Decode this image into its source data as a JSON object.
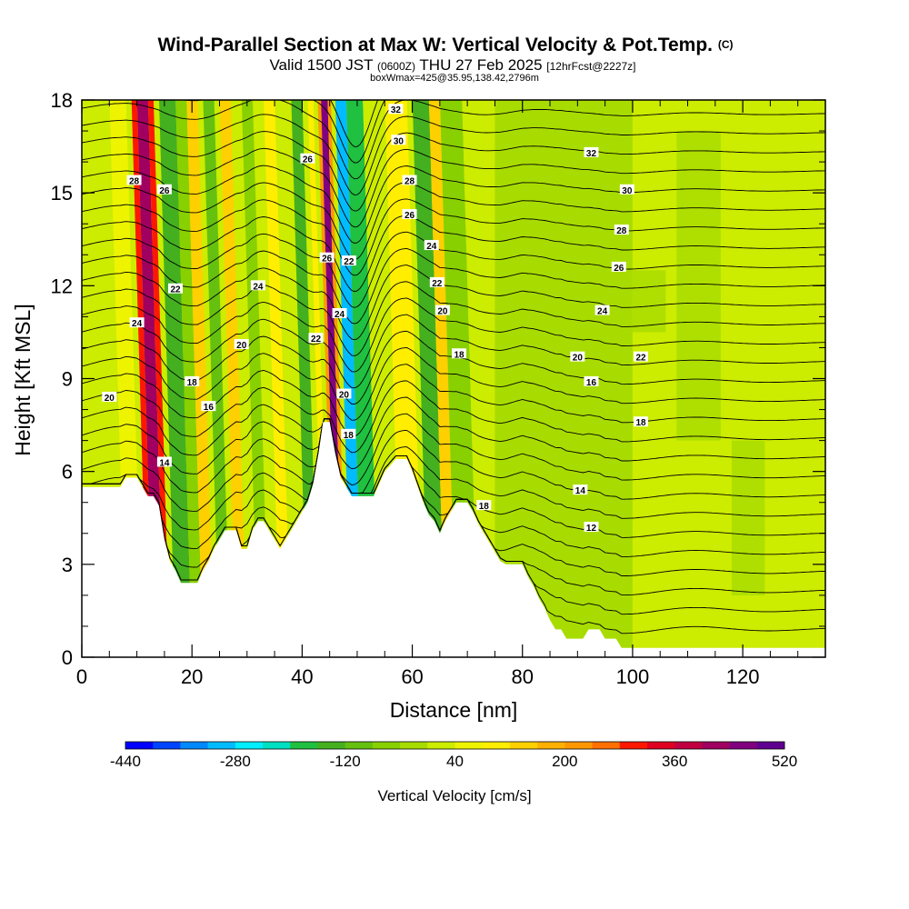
{
  "header": {
    "title": "Wind-Parallel Section at Max W: Vertical Velocity & Pot.Temp.",
    "copyright": "(C)",
    "valid_prefix": "Valid 1500 JST",
    "valid_utc": "(0600Z)",
    "valid_date": "THU 27 Feb 2025",
    "forecast": "[12hrFcst@2227z]",
    "box_info": "boxWmax=425@35.95,138.42,2796m"
  },
  "colors": {
    "terrain": "#ffffff",
    "contour": "#000000",
    "palette": [
      "#0000ff",
      "#0044ff",
      "#0088ff",
      "#00bbff",
      "#00eeff",
      "#00e0c0",
      "#00d090",
      "#20c040",
      "#44b020",
      "#66c010",
      "#88d000",
      "#a8dc00",
      "#ccec00",
      "#eef400",
      "#ffee00",
      "#ffd000",
      "#ffb000",
      "#ff9800",
      "#ff7000",
      "#ff4800",
      "#ff1800",
      "#e00020",
      "#c00040",
      "#a00060",
      "#800080",
      "#600090"
    ]
  },
  "chart_data": {
    "type": "heatmap",
    "title": "Wind-Parallel Section at Max W: Vertical Velocity & Pot.Temp.",
    "xlabel": "Distance [nm]",
    "ylabel": "Height [Kft MSL]",
    "xlim": [
      0,
      135
    ],
    "ylim": [
      0,
      18
    ],
    "x_ticks": [
      "0",
      "20",
      "40",
      "60",
      "80",
      "100",
      "120"
    ],
    "y_ticks": [
      "0",
      "3",
      "6",
      "9",
      "12",
      "15",
      "18"
    ],
    "colorbar": {
      "label": "Vertical Velocity [cm/s]",
      "min": -440,
      "max": 520,
      "step": 40,
      "tick_labels": [
        "-440",
        "-280",
        "-120",
        "40",
        "200",
        "360",
        "520"
      ]
    },
    "terrain_height_kft": [
      [
        0,
        5.5
      ],
      [
        7,
        5.5
      ],
      [
        8,
        5.8
      ],
      [
        10,
        5.8
      ],
      [
        11,
        5.5
      ],
      [
        12,
        5.2
      ],
      [
        13,
        5.2
      ],
      [
        14,
        4.9
      ],
      [
        15,
        3.8
      ],
      [
        16,
        3.1
      ],
      [
        17,
        2.8
      ],
      [
        18,
        2.4
      ],
      [
        21,
        2.4
      ],
      [
        22,
        2.8
      ],
      [
        23,
        3.1
      ],
      [
        24,
        3.5
      ],
      [
        25,
        3.8
      ],
      [
        26,
        4.1
      ],
      [
        28,
        4.1
      ],
      [
        29,
        3.5
      ],
      [
        30,
        3.5
      ],
      [
        31,
        4.1
      ],
      [
        32,
        4.4
      ],
      [
        33,
        4.4
      ],
      [
        34,
        4.1
      ],
      [
        35,
        3.8
      ],
      [
        36,
        3.5
      ],
      [
        37,
        3.8
      ],
      [
        38,
        4.1
      ],
      [
        39,
        4.4
      ],
      [
        40,
        4.7
      ],
      [
        41,
        5.0
      ],
      [
        42,
        5.6
      ],
      [
        43,
        6.6
      ],
      [
        43.8,
        7.6
      ],
      [
        45,
        7.6
      ],
      [
        46,
        6.6
      ],
      [
        46.5,
        6.2
      ],
      [
        47,
        5.8
      ],
      [
        48,
        5.5
      ],
      [
        49,
        5.2
      ],
      [
        53,
        5.2
      ],
      [
        54,
        5.6
      ],
      [
        55,
        6.0
      ],
      [
        57,
        6.4
      ],
      [
        59,
        6.4
      ],
      [
        60,
        6.0
      ],
      [
        61,
        5.5
      ],
      [
        62,
        5.0
      ],
      [
        63,
        4.6
      ],
      [
        64,
        4.4
      ],
      [
        65,
        4.0
      ],
      [
        66,
        4.4
      ],
      [
        67,
        4.7
      ],
      [
        68,
        5.0
      ],
      [
        70,
        5.0
      ],
      [
        71,
        4.7
      ],
      [
        72,
        4.3
      ],
      [
        73,
        4.0
      ],
      [
        74,
        3.7
      ],
      [
        75,
        3.4
      ],
      [
        76,
        3.1
      ],
      [
        77,
        3.0
      ],
      [
        80,
        3.0
      ],
      [
        81,
        2.6
      ],
      [
        82,
        2.3
      ],
      [
        83,
        1.9
      ],
      [
        84,
        1.6
      ],
      [
        85,
        1.2
      ],
      [
        86,
        0.9
      ],
      [
        87,
        0.9
      ],
      [
        88,
        0.6
      ],
      [
        89,
        0.6
      ],
      [
        91,
        0.6
      ],
      [
        92,
        0.9
      ],
      [
        94,
        0.9
      ],
      [
        95,
        0.6
      ],
      [
        97,
        0.6
      ],
      [
        98,
        0.3
      ],
      [
        135,
        0.3
      ]
    ],
    "w_bands_cm_s": [
      {
        "x": [
          8,
          11
        ],
        "w": 60
      },
      {
        "x": [
          12,
          13
        ],
        "w": 280
      },
      {
        "x": [
          13,
          15
        ],
        "w": 420
      },
      {
        "x": [
          15,
          16
        ],
        "w": 300
      },
      {
        "x": [
          17,
          20
        ],
        "w": -140
      },
      {
        "x": [
          20,
          22
        ],
        "w": -80
      },
      {
        "x": [
          22,
          24
        ],
        "w": 120
      },
      {
        "x": [
          25,
          27
        ],
        "w": -100
      },
      {
        "x": [
          28,
          30
        ],
        "w": 150
      },
      {
        "x": [
          32,
          34
        ],
        "w": -60
      },
      {
        "x": [
          36,
          38
        ],
        "w": 100
      },
      {
        "x": [
          41,
          43
        ],
        "w": -150
      },
      {
        "x": [
          44,
          45
        ],
        "w": 80
      },
      {
        "x": [
          45.8,
          46.4
        ],
        "w": 200
      },
      {
        "x": [
          46.4,
          47.6
        ],
        "w": 440
      },
      {
        "x": [
          47.6,
          48.2
        ],
        "w": 200
      },
      {
        "x": [
          49,
          51
        ],
        "w": -320
      },
      {
        "x": [
          51,
          54
        ],
        "w": -180
      },
      {
        "x": [
          54,
          58
        ],
        "w": 20
      },
      {
        "x": [
          58,
          62
        ],
        "w": 100
      },
      {
        "x": [
          63,
          66
        ],
        "w": -140
      },
      {
        "x": [
          66,
          68
        ],
        "w": 120
      },
      {
        "x": [
          68,
          72
        ],
        "w": -60
      },
      {
        "x": [
          72,
          75
        ],
        "w": 0
      },
      {
        "x": [
          75,
          100
        ],
        "w": -20
      },
      {
        "x": [
          100,
          135
        ],
        "w": 20
      }
    ],
    "theta_contour_labels": [
      "12",
      "14",
      "16",
      "18",
      "20",
      "22",
      "24",
      "26",
      "28",
      "30",
      "32"
    ]
  }
}
